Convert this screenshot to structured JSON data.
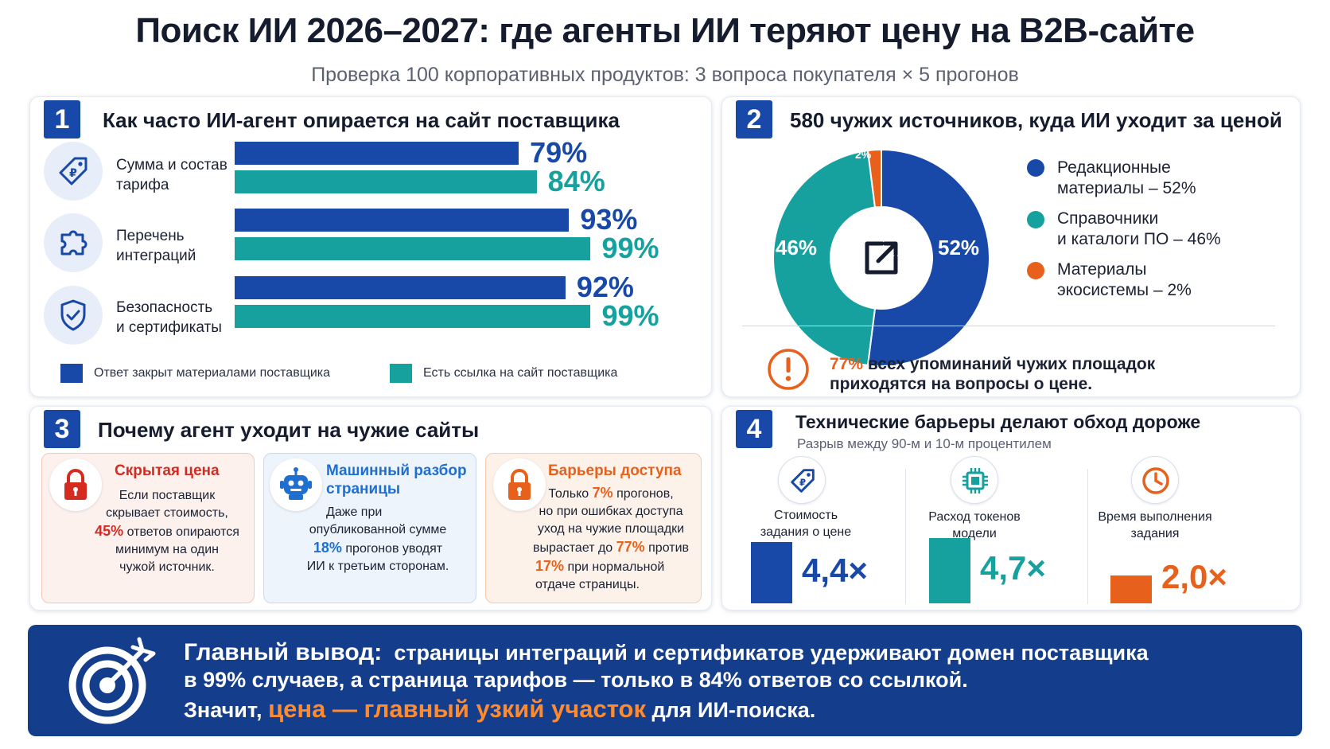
{
  "header": {
    "title": "Поиск ИИ 2026–2027: где агенты ИИ теряют цену на B2B-сайте",
    "subtitle": "Проверка 100 корпоративных продуктов: 3 вопроса покупателя × 5 прогонов"
  },
  "colors": {
    "navy": "#1849a9",
    "teal": "#16a19f",
    "orange": "#e8611c",
    "red": "#d42a20",
    "banner": "#143d8c"
  },
  "panel1": {
    "number": "1",
    "title": "Как часто ИИ-агент опирается на сайт поставщика",
    "rows": [
      {
        "icon": "price-tag-icon",
        "label_line1": "Сумма и состав",
        "label_line2": "тарифа",
        "navy_label": "79%",
        "teal_label": "84%"
      },
      {
        "icon": "puzzle-icon",
        "label_line1": "Перечень",
        "label_line2": "интеграций",
        "navy_label": "93%",
        "teal_label": "99%"
      },
      {
        "icon": "shield-check-icon",
        "label_line1": "Безопасность",
        "label_line2": "и сертификаты",
        "navy_label": "92%",
        "teal_label": "99%"
      }
    ],
    "legend": {
      "navy": "Ответ закрыт материалами поставщика",
      "teal": "Есть ссылка на сайт поставщика"
    }
  },
  "panel2": {
    "number": "2",
    "title": "580 чужих источников, куда ИИ уходит за ценой",
    "legend": [
      {
        "line1": "Редакционные",
        "line2": "материалы – 52%"
      },
      {
        "line1": "Справочники",
        "line2": "и каталоги ПО – 46%"
      },
      {
        "line1": "Материалы",
        "line2": "экосистемы – 2%"
      }
    ],
    "slice_labels": [
      "52%",
      "46%",
      "2%"
    ],
    "center_icon": "external-link-icon",
    "note_value": "77%",
    "note_line1": "всех упоминаний чужих площадок",
    "note_line2": "приходятся на вопросы о цене.",
    "note_icon": "alert-icon"
  },
  "panel3": {
    "number": "3",
    "title": "Почему агент уходит на чужие сайты",
    "cards": [
      {
        "icon": "lock-icon",
        "title": "Скрытая цена",
        "l1": "Если поставщик",
        "l2": "скрывает стоимость,",
        "hl": "45%",
        "l3": "ответов опираются",
        "l4": "минимум на один",
        "l5": "чужой источник."
      },
      {
        "icon": "robot-icon",
        "title_line1": "Машинный разбор",
        "title_line2": "страницы",
        "l1": "Даже при",
        "l2": "опубликованной сумме",
        "hl": "18%",
        "l3": "прогонов уводят",
        "l4": "ИИ к третьим сторонам."
      },
      {
        "icon": "lock-icon",
        "title": "Барьеры доступа",
        "l1a": "Только",
        "hl1": "7%",
        "l1b": "прогонов,",
        "l2": "но при ошибках доступа",
        "l3": "уход на чужие площадки",
        "l4a": "вырастает до",
        "hl2": "77%",
        "l4b": "против",
        "hl3": "17%",
        "l5a": "при нормальной",
        "l6": "отдаче страницы."
      }
    ]
  },
  "panel4": {
    "number": "4",
    "title": "Технические барьеры делают обход дороже",
    "subtitle": "Разрыв между 90-м и 10-м процентилем",
    "columns": [
      {
        "icon": "price-tag-icon",
        "label_line1": "Стоимость",
        "label_line2": "задания о цене",
        "value_label": "4,4×"
      },
      {
        "icon": "chip-icon",
        "label_line1": "Расход токенов",
        "label_line2": "модели",
        "value_label": "4,7×"
      },
      {
        "icon": "clock-icon",
        "label_line1": "Время выполнения",
        "label_line2": "задания",
        "value_label": "2,0×"
      }
    ]
  },
  "banner": {
    "icon": "target-icon",
    "lead": "Главный вывод:",
    "line1": "страницы интеграций и сертификатов удерживают домен поставщика",
    "line2": "в 99% случаев, а страница тарифов — только в 84% ответов со ссылкой.",
    "line3a": "Значит,",
    "line3_accent": "цена — главный узкий участок",
    "line3b": "для ИИ-поиска."
  },
  "chart_data": [
    {
      "type": "bar",
      "title": "Как часто ИИ-агент опирается на сайт поставщика",
      "orientation": "horizontal",
      "categories": [
        "Сумма и состав тарифа",
        "Перечень интеграций",
        "Безопасность и сертификаты"
      ],
      "series": [
        {
          "name": "Ответ закрыт материалами поставщика",
          "values": [
            79,
            93,
            92
          ],
          "color": "#1849a9"
        },
        {
          "name": "Есть ссылка на сайт поставщика",
          "values": [
            84,
            99,
            99
          ],
          "color": "#16a19f"
        }
      ],
      "xlim": [
        0,
        100
      ],
      "legend": "bottom"
    },
    {
      "type": "pie",
      "style": "donut",
      "title": "580 чужих источников, куда ИИ уходит за ценой",
      "categories": [
        "Редакционные материалы",
        "Справочники и каталоги ПО",
        "Материалы экосистемы"
      ],
      "values": [
        52,
        46,
        2
      ],
      "colors": [
        "#1849a9",
        "#16a19f",
        "#e8611c"
      ],
      "legend": "right"
    },
    {
      "type": "bar",
      "title": "Технические барьеры делают обход дороже",
      "subtitle": "Разрыв между 90-м и 10-м процентилем",
      "categories": [
        "Стоимость задания о цене",
        "Расход токенов модели",
        "Время выполнения задания"
      ],
      "values": [
        4.4,
        4.7,
        2.0
      ],
      "colors": [
        "#1849a9",
        "#16a19f",
        "#e8611c"
      ]
    }
  ]
}
